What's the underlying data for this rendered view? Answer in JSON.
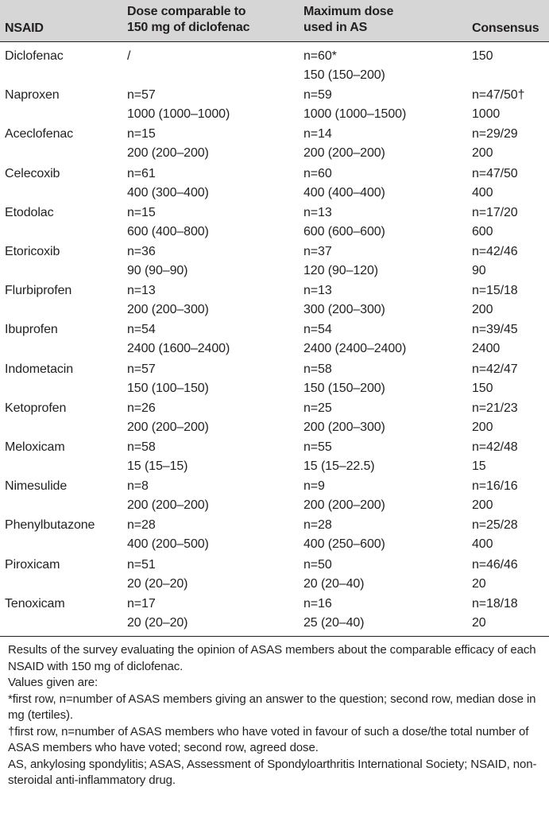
{
  "header": {
    "col1": "NSAID",
    "col2_line1": "Dose comparable to",
    "col2_line2": "150 mg of diclofenac",
    "col3_line1": "Maximum dose",
    "col3_line2": "used in AS",
    "col4": "Consensus"
  },
  "rows": [
    {
      "drug": "Diclofenac",
      "comp1": "/",
      "comp2": "",
      "max1": "n=60*",
      "max2": "150 (150–200)",
      "cons1": "150",
      "cons2": ""
    },
    {
      "drug": "Naproxen",
      "comp1": "n=57",
      "comp2": "1000 (1000–1000)",
      "max1": "n=59",
      "max2": "1000 (1000–1500)",
      "cons1": "n=47/50†",
      "cons2": "1000"
    },
    {
      "drug": "Aceclofenac",
      "comp1": "n=15",
      "comp2": "200 (200–200)",
      "max1": "n=14",
      "max2": "200 (200–200)",
      "cons1": "n=29/29",
      "cons2": "200"
    },
    {
      "drug": "Celecoxib",
      "comp1": "n=61",
      "comp2": "400 (300–400)",
      "max1": "n=60",
      "max2": "400 (400–400)",
      "cons1": "n=47/50",
      "cons2": "400"
    },
    {
      "drug": "Etodolac",
      "comp1": "n=15",
      "comp2": "600 (400–800)",
      "max1": "n=13",
      "max2": "600 (600–600)",
      "cons1": "n=17/20",
      "cons2": "600"
    },
    {
      "drug": "Etoricoxib",
      "comp1": "n=36",
      "comp2": "90 (90–90)",
      "max1": "n=37",
      "max2": "120 (90–120)",
      "cons1": "n=42/46",
      "cons2": "90"
    },
    {
      "drug": "Flurbiprofen",
      "comp1": "n=13",
      "comp2": "200 (200–300)",
      "max1": "n=13",
      "max2": "300 (200–300)",
      "cons1": "n=15/18",
      "cons2": "200"
    },
    {
      "drug": "Ibuprofen",
      "comp1": "n=54",
      "comp2": "2400 (1600–2400)",
      "max1": "n=54",
      "max2": "2400 (2400–2400)",
      "cons1": "n=39/45",
      "cons2": "2400"
    },
    {
      "drug": "Indometacin",
      "comp1": "n=57",
      "comp2": "150 (100–150)",
      "max1": "n=58",
      "max2": "150 (150–200)",
      "cons1": "n=42/47",
      "cons2": "150"
    },
    {
      "drug": "Ketoprofen",
      "comp1": "n=26",
      "comp2": "200 (200–200)",
      "max1": "n=25",
      "max2": "200 (200–300)",
      "cons1": "n=21/23",
      "cons2": "200"
    },
    {
      "drug": "Meloxicam",
      "comp1": "n=58",
      "comp2": "15 (15–15)",
      "max1": "n=55",
      "max2": "15 (15–22.5)",
      "cons1": "n=42/48",
      "cons2": "15"
    },
    {
      "drug": "Nimesulide",
      "comp1": "n=8",
      "comp2": "200 (200–200)",
      "max1": "n=9",
      "max2": "200 (200–200)",
      "cons1": "n=16/16",
      "cons2": "200"
    },
    {
      "drug": "Phenylbutazone",
      "comp1": "n=28",
      "comp2": "400 (200–500)",
      "max1": "n=28",
      "max2": "400 (250–600)",
      "cons1": "n=25/28",
      "cons2": "400"
    },
    {
      "drug": "Piroxicam",
      "comp1": "n=51",
      "comp2": "20 (20–20)",
      "max1": "n=50",
      "max2": "20 (20–40)",
      "cons1": "n=46/46",
      "cons2": "20"
    },
    {
      "drug": "Tenoxicam",
      "comp1": "n=17",
      "comp2": "20 (20–20)",
      "max1": "n=16",
      "max2": "25 (20–40)",
      "cons1": "n=18/18",
      "cons2": "20"
    }
  ],
  "footnotes": {
    "p1": "Results of the survey evaluating the opinion of ASAS members about the comparable efficacy of each NSAID with 150 mg of diclofenac.",
    "p2": "Values given are:",
    "p3": "*first row, n=number of ASAS members giving an answer to the question; second row, median dose in mg (tertiles).",
    "p4": "†first row, n=number of ASAS members who have voted in favour of such a dose/the total number of ASAS members who have voted; second row, agreed dose.",
    "p5": "AS, ankylosing spondylitis; ASAS, Assessment of Spondyloarthritis International Society; NSAID, non-steroidal anti-inflammatory drug."
  }
}
